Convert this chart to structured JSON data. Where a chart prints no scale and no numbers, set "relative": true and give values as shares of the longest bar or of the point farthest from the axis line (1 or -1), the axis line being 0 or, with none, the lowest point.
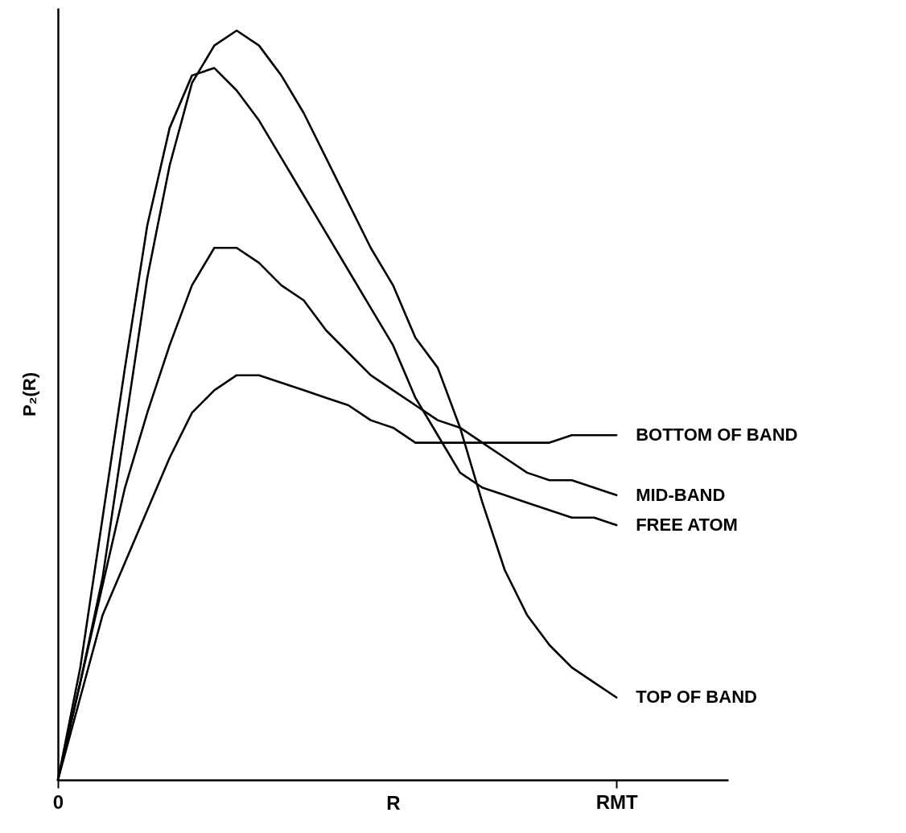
{
  "chart_data": {
    "type": "line",
    "relative": true,
    "xlabel": "R",
    "ylabel": "P₂(R)",
    "marker": "none",
    "categories": [
      "0",
      null,
      null,
      null,
      null,
      null,
      null,
      null,
      null,
      null,
      null,
      null,
      null,
      null,
      null,
      null,
      null,
      null,
      null,
      null,
      null,
      null,
      null,
      null,
      null,
      "RMT",
      null,
      null,
      null,
      null,
      null
    ],
    "series": [
      {
        "name": "BOTTOM OF BAND",
        "color": "#000000",
        "values": [
          0,
          0.11,
          0.22,
          0.29,
          0.36,
          0.43,
          0.49,
          0.52,
          0.54,
          0.54,
          0.53,
          0.52,
          0.51,
          0.5,
          0.48,
          0.47,
          0.45,
          0.45,
          0.45,
          0.45,
          0.45,
          0.45,
          0.45,
          0.46,
          0.46,
          0.46,
          null,
          null,
          null,
          null,
          null
        ]
      },
      {
        "name": "MID-BAND",
        "color": "#000000",
        "values": [
          0,
          0.13,
          0.26,
          0.39,
          0.49,
          0.58,
          0.66,
          0.71,
          0.71,
          0.69,
          0.66,
          0.64,
          0.6,
          0.57,
          0.54,
          0.52,
          0.5,
          0.48,
          0.47,
          0.45,
          0.43,
          0.41,
          0.4,
          0.4,
          0.39,
          0.38,
          null,
          null,
          null,
          null,
          null
        ]
      },
      {
        "name": "FREE ATOM",
        "color": "#000000",
        "values": [
          0,
          0.15,
          0.35,
          0.55,
          0.74,
          0.87,
          0.94,
          0.95,
          0.92,
          0.88,
          0.83,
          0.78,
          0.73,
          0.68,
          0.63,
          0.58,
          0.51,
          0.46,
          0.41,
          0.39,
          0.38,
          0.37,
          0.36,
          0.35,
          0.35,
          0.34,
          null,
          null,
          null,
          null,
          null
        ]
      },
      {
        "name": "TOP OF BAND",
        "color": "#000000",
        "values": [
          0,
          0.13,
          0.27,
          0.47,
          0.67,
          0.82,
          0.93,
          0.98,
          1,
          0.98,
          0.94,
          0.89,
          0.83,
          0.77,
          0.71,
          0.66,
          0.59,
          0.55,
          0.47,
          0.37,
          0.28,
          0.22,
          0.18,
          0.15,
          0.13,
          0.11,
          null,
          null,
          null,
          null,
          null
        ]
      }
    ]
  }
}
